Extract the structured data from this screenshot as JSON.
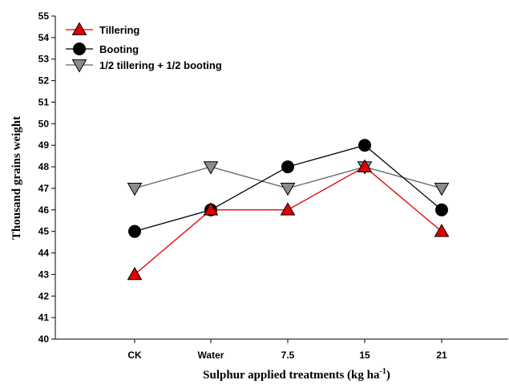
{
  "chart_data": {
    "type": "line",
    "categories": [
      "CK",
      "Water",
      "7.5",
      "15",
      "21"
    ],
    "series": [
      {
        "name": "Tillering",
        "values": [
          43,
          46,
          46,
          48,
          45
        ],
        "color": "#e00000",
        "marker": "triangle-up",
        "fill": "#e00000"
      },
      {
        "name": "Booting",
        "values": [
          45,
          46,
          48,
          49,
          46
        ],
        "color": "#000000",
        "marker": "circle",
        "fill": "#000000"
      },
      {
        "name": "1/2 tillering + 1/2 booting",
        "values": [
          47,
          48,
          47,
          48,
          47
        ],
        "color": "#666666",
        "marker": "triangle-down",
        "fill": "#8c8c8c"
      }
    ],
    "ylim": [
      40,
      55
    ],
    "yticks": [
      40,
      41,
      42,
      43,
      44,
      45,
      46,
      47,
      48,
      49,
      50,
      51,
      52,
      53,
      54,
      55
    ],
    "xlabel": {
      "main": "Sulphur applied treatments (kg ha",
      "sup": "-1",
      "tail": ")"
    },
    "ylabel": "Thousand grains weight",
    "legend_position": "top-left",
    "grid": false
  }
}
